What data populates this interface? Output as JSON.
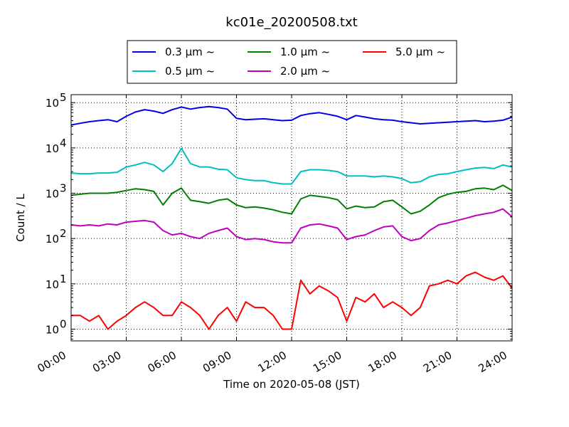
{
  "chart_data": {
    "type": "line",
    "title": "kc01e_20200508.txt",
    "xlabel": "Time on 2020-05-08 (JST)",
    "ylabel": "Count / L",
    "xlim": [
      0,
      24
    ],
    "ylim": [
      0.55,
      150000
    ],
    "yscale": "log",
    "grid": true,
    "legend_position": "top-center",
    "x_ticks": [
      "00:00",
      "03:00",
      "06:00",
      "09:00",
      "12:00",
      "15:00",
      "18:00",
      "21:00",
      "24:00"
    ],
    "y_ticks": [
      {
        "base": "10",
        "exp": "0"
      },
      {
        "base": "10",
        "exp": "1"
      },
      {
        "base": "10",
        "exp": "2"
      },
      {
        "base": "10",
        "exp": "3"
      },
      {
        "base": "10",
        "exp": "4"
      },
      {
        "base": "10",
        "exp": "5"
      }
    ],
    "series": [
      {
        "name": "0.3 μm ~",
        "color": "#0000ee",
        "x": [
          0,
          0.5,
          1,
          1.5,
          2,
          2.5,
          3,
          3.5,
          4,
          4.5,
          5,
          5.5,
          6,
          6.5,
          7,
          7.5,
          8,
          8.5,
          9,
          9.5,
          10,
          10.5,
          11,
          11.5,
          12,
          12.5,
          13,
          13.5,
          14,
          14.5,
          15,
          15.5,
          16,
          16.5,
          17,
          17.5,
          18,
          18.5,
          19,
          19.5,
          20,
          20.5,
          21,
          21.5,
          22,
          22.5,
          23,
          23.5,
          24
        ],
        "values": [
          32000,
          35000,
          38000,
          40000,
          42000,
          38000,
          50000,
          62000,
          70000,
          65000,
          58000,
          70000,
          80000,
          72000,
          78000,
          82000,
          78000,
          72000,
          45000,
          42000,
          43000,
          44000,
          42000,
          40000,
          41000,
          52000,
          57000,
          60000,
          55000,
          50000,
          42000,
          52000,
          48000,
          44000,
          42000,
          41000,
          38000,
          36000,
          34000,
          35000,
          36000,
          37000,
          38000,
          39000,
          40000,
          38000,
          39000,
          41000,
          48000
        ]
      },
      {
        "name": "0.5 μm ~",
        "color": "#00bfbf",
        "x": [
          0,
          0.5,
          1,
          1.5,
          2,
          2.5,
          3,
          3.5,
          4,
          4.5,
          5,
          5.5,
          6,
          6.5,
          7,
          7.5,
          8,
          8.5,
          9,
          9.5,
          10,
          10.5,
          11,
          11.5,
          12,
          12.5,
          13,
          13.5,
          14,
          14.5,
          15,
          15.5,
          16,
          16.5,
          17,
          17.5,
          18,
          18.5,
          19,
          19.5,
          20,
          20.5,
          21,
          21.5,
          22,
          22.5,
          23,
          23.5,
          24
        ],
        "values": [
          2800,
          2700,
          2700,
          2800,
          2800,
          2900,
          3800,
          4200,
          4800,
          4200,
          3000,
          4500,
          9800,
          4500,
          3800,
          3800,
          3400,
          3300,
          2200,
          2000,
          1900,
          1900,
          1700,
          1600,
          1600,
          3000,
          3300,
          3300,
          3200,
          3000,
          2400,
          2400,
          2400,
          2300,
          2400,
          2300,
          2100,
          1700,
          1800,
          2300,
          2600,
          2700,
          3000,
          3300,
          3600,
          3700,
          3500,
          4200,
          3800
        ]
      },
      {
        "name": "1.0 μm ~",
        "color": "#008000",
        "x": [
          0,
          0.5,
          1,
          1.5,
          2,
          2.5,
          3,
          3.5,
          4,
          4.5,
          5,
          5.5,
          6,
          6.5,
          7,
          7.5,
          8,
          8.5,
          9,
          9.5,
          10,
          10.5,
          11,
          11.5,
          12,
          12.5,
          13,
          13.5,
          14,
          14.5,
          15,
          15.5,
          16,
          16.5,
          17,
          17.5,
          18,
          18.5,
          19,
          19.5,
          20,
          20.5,
          21,
          21.5,
          22,
          22.5,
          23,
          23.5,
          24
        ],
        "values": [
          900,
          950,
          1000,
          1000,
          1000,
          1050,
          1150,
          1250,
          1200,
          1100,
          550,
          1000,
          1300,
          700,
          650,
          600,
          700,
          750,
          550,
          480,
          500,
          470,
          430,
          380,
          350,
          750,
          900,
          850,
          800,
          720,
          450,
          520,
          480,
          500,
          650,
          700,
          500,
          350,
          400,
          550,
          800,
          950,
          1050,
          1100,
          1250,
          1300,
          1200,
          1500,
          1150
        ]
      },
      {
        "name": "2.0 μm ~",
        "color": "#bf00bf",
        "x": [
          0,
          0.5,
          1,
          1.5,
          2,
          2.5,
          3,
          3.5,
          4,
          4.5,
          5,
          5.5,
          6,
          6.5,
          7,
          7.5,
          8,
          8.5,
          9,
          9.5,
          10,
          10.5,
          11,
          11.5,
          12,
          12.5,
          13,
          13.5,
          14,
          14.5,
          15,
          15.5,
          16,
          16.5,
          17,
          17.5,
          18,
          18.5,
          19,
          19.5,
          20,
          20.5,
          21,
          21.5,
          22,
          22.5,
          23,
          23.5,
          24
        ],
        "values": [
          200,
          190,
          200,
          190,
          210,
          200,
          230,
          240,
          250,
          230,
          150,
          120,
          130,
          110,
          100,
          130,
          150,
          170,
          110,
          95,
          100,
          95,
          85,
          80,
          80,
          170,
          200,
          210,
          190,
          170,
          95,
          110,
          120,
          150,
          180,
          190,
          110,
          90,
          100,
          150,
          200,
          220,
          250,
          280,
          320,
          350,
          380,
          450,
          300
        ]
      },
      {
        "name": "5.0 μm ~",
        "color": "#ff0000",
        "x": [
          0,
          0.5,
          1,
          1.5,
          2,
          2.5,
          3,
          3.5,
          4,
          4.5,
          5,
          5.5,
          6,
          6.5,
          7,
          7.5,
          8,
          8.5,
          9,
          9.5,
          10,
          10.5,
          11,
          11.5,
          12,
          12.5,
          13,
          13.5,
          14,
          14.5,
          15,
          15.5,
          16,
          16.5,
          17,
          17.5,
          18,
          18.5,
          19,
          19.5,
          20,
          20.5,
          21,
          21.5,
          22,
          22.5,
          23,
          23.5,
          24
        ],
        "values": [
          2,
          2,
          1.5,
          2,
          1,
          1.5,
          2,
          3,
          4,
          3,
          2,
          2,
          4,
          3,
          2,
          1,
          2,
          3,
          1.5,
          4,
          3,
          3,
          2,
          1,
          1,
          12,
          6,
          9,
          7,
          5,
          1.5,
          5,
          4,
          6,
          3,
          4,
          3,
          2,
          3,
          9,
          10,
          12,
          10,
          15,
          18,
          14,
          12,
          15,
          8
        ]
      }
    ]
  }
}
